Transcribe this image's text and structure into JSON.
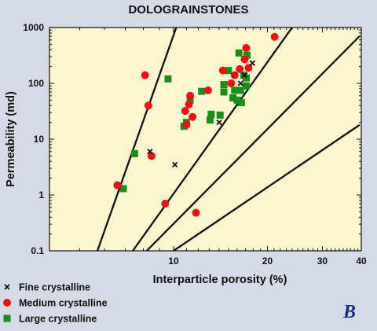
{
  "chart_data": {
    "type": "scatter",
    "title": "DOLOGRAINSTONES",
    "xlabel": "Interparticle porosity (%)",
    "ylabel": "Permeability (md)",
    "xscale": "log",
    "yscale": "log",
    "xlim": [
      4,
      40
    ],
    "ylim": [
      0.1,
      1000
    ],
    "x_ticks": [
      10,
      20,
      30,
      40
    ],
    "y_ticks": [
      0.1,
      1,
      10,
      100,
      1000
    ],
    "y_tick_labels": [
      "0.1",
      "1",
      "10",
      "100",
      "1000"
    ],
    "grid": false,
    "panel_label": "B",
    "legend_position": "bottom-left",
    "background_color": "#fbf6cf",
    "boundary_lines": [
      {
        "points": [
          [
            5.7,
            0.1
          ],
          [
            10.2,
            1000
          ]
        ]
      },
      {
        "points": [
          [
            7.4,
            0.1
          ],
          [
            24.0,
            1000
          ]
        ]
      },
      {
        "points": [
          [
            8.2,
            0.1
          ],
          [
            39.5,
            700
          ]
        ]
      },
      {
        "points": [
          [
            10.0,
            0.1
          ],
          [
            39.5,
            18
          ]
        ]
      }
    ],
    "series": [
      {
        "name": "Fine crystalline",
        "marker": "cross",
        "color": "#111111",
        "x": [
          8.4,
          10.1,
          14.0,
          16.4,
          16.9,
          17.9
        ],
        "y": [
          6.0,
          3.5,
          20,
          100,
          140,
          230
        ]
      },
      {
        "name": "Medium crystalline",
        "marker": "circle",
        "color": "#ee1111",
        "x": [
          6.6,
          8.1,
          8.3,
          8.5,
          9.4,
          10.9,
          11.0,
          11.2,
          11.3,
          11.5,
          11.8,
          12.9,
          14.4,
          15.3,
          15.7,
          16.3,
          16.9,
          17.1,
          17.4,
          21.1
        ],
        "y": [
          1.5,
          140,
          40,
          5.0,
          0.7,
          32,
          18,
          42,
          60,
          25,
          0.48,
          75,
          170,
          100,
          140,
          180,
          270,
          430,
          190,
          680
        ]
      },
      {
        "name": "Large crystalline",
        "marker": "square",
        "color": "#1c8c1c",
        "x": [
          6.9,
          7.5,
          9.6,
          10.8,
          11.0,
          11.3,
          12.3,
          13.1,
          13.2,
          14.1,
          14.5,
          14.5,
          15.0,
          15.5,
          15.7,
          16.0,
          16.2,
          16.4,
          16.5,
          16.8,
          17.1,
          17.1,
          17.2
        ],
        "y": [
          1.3,
          5.5,
          120,
          17,
          20,
          50,
          72,
          22,
          28,
          27,
          70,
          95,
          170,
          55,
          75,
          50,
          350,
          75,
          45,
          140,
          90,
          125,
          320
        ]
      }
    ]
  }
}
